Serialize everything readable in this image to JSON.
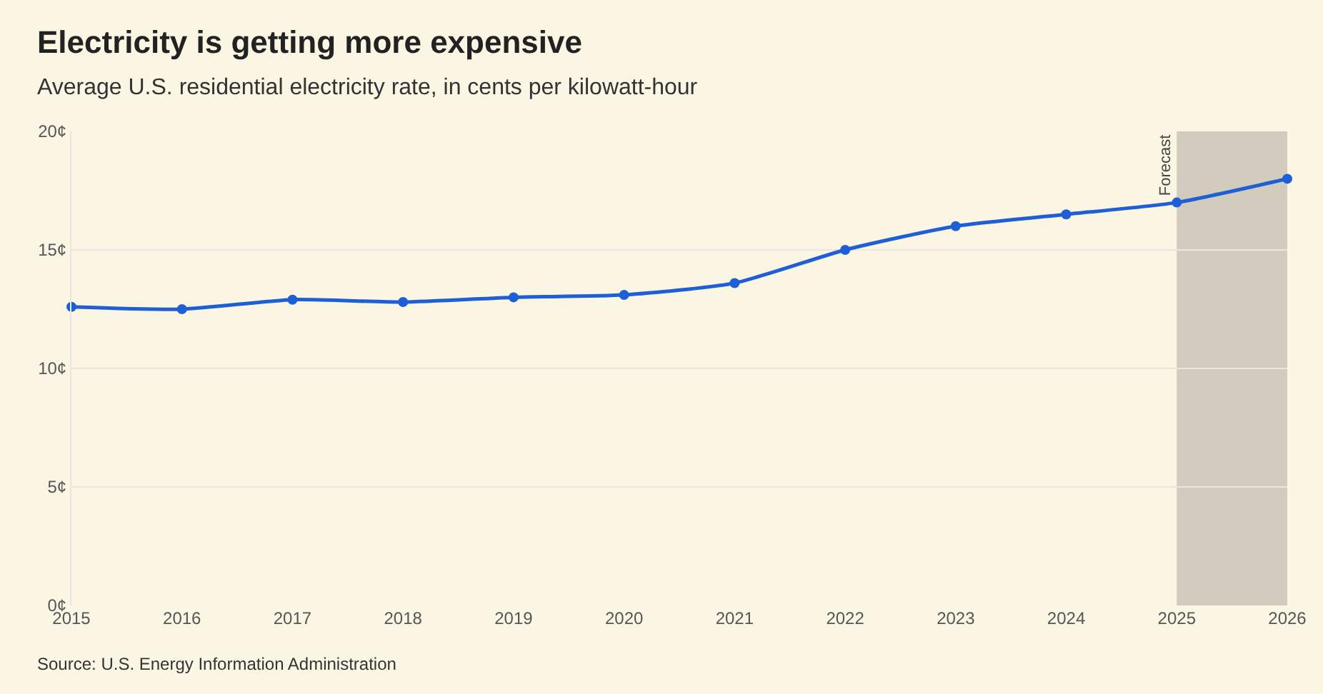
{
  "chart_data": {
    "type": "line",
    "title": "Electricity is getting more expensive",
    "subtitle": "Average U.S. residential electricity rate, in cents per kilowatt-hour",
    "x": [
      2015,
      2016,
      2017,
      2018,
      2019,
      2020,
      2021,
      2022,
      2023,
      2024,
      2025,
      2026
    ],
    "series": [
      {
        "color": "#1f5fd6",
        "values": [
          12.6,
          12.5,
          12.9,
          12.8,
          13.0,
          13.1,
          13.6,
          15.0,
          16.0,
          16.5,
          17.0,
          18.0
        ]
      }
    ],
    "xlim": [
      2015,
      2026
    ],
    "xticks": [
      2015,
      2016,
      2017,
      2018,
      2019,
      2020,
      2021,
      2022,
      2023,
      2024,
      2025,
      2026
    ],
    "ylim": [
      0,
      20
    ],
    "yticks": [
      {
        "value": 0,
        "label": "0¢"
      },
      {
        "value": 5,
        "label": "5¢"
      },
      {
        "value": 10,
        "label": "10¢"
      },
      {
        "value": 15,
        "label": "15¢"
      },
      {
        "value": 20,
        "label": "20¢"
      }
    ],
    "bands": [
      {
        "axis": "x",
        "from": 2025,
        "to": 2026,
        "label": "Forecast",
        "color": "#d1ccbd"
      }
    ],
    "annotations": [
      "Source: U.S. Energy Information Administration"
    ],
    "grid": "y",
    "marker": "circle",
    "line_style": "solid"
  }
}
